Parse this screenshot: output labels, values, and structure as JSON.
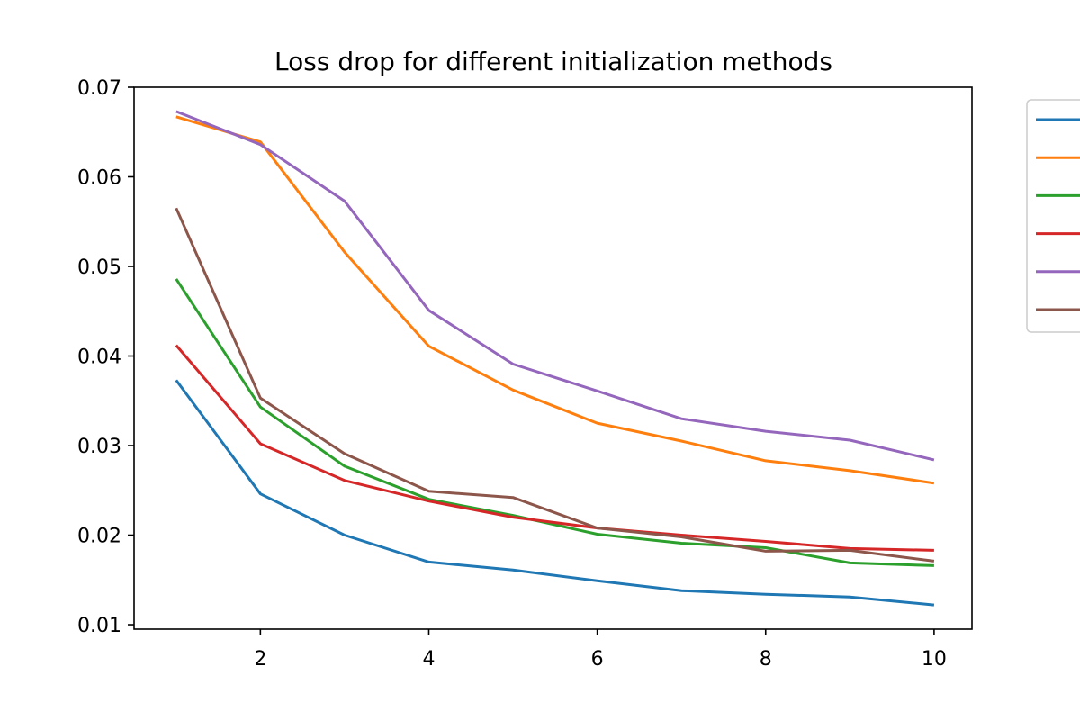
{
  "chart_data": {
    "type": "line",
    "title": "Loss drop for different initialization methods",
    "xlabel": "",
    "ylabel": "",
    "xlim": [
      0.5,
      10.45
    ],
    "ylim": [
      0.0095,
      0.07
    ],
    "xticks": [
      2,
      4,
      6,
      8,
      10
    ],
    "yticks": [
      0.01,
      0.02,
      0.03,
      0.04,
      0.05,
      0.06,
      0.07
    ],
    "ytick_labels": [
      "0.01",
      "0.02",
      "0.03",
      "0.04",
      "0.05",
      "0.06",
      "0.07"
    ],
    "x": [
      1,
      2,
      3,
      4,
      5,
      6,
      7,
      8,
      9,
      10
    ],
    "grid": false,
    "legend": "outside-right, partially cropped",
    "series": [
      {
        "color": "#1f77b4",
        "values": [
          0.0373,
          0.0246,
          0.02,
          0.017,
          0.0161,
          0.0149,
          0.0138,
          0.0134,
          0.0131,
          0.0122
        ]
      },
      {
        "color": "#ff7f0e",
        "values": [
          0.0667,
          0.0639,
          0.0516,
          0.0411,
          0.0362,
          0.0325,
          0.0305,
          0.0283,
          0.0272,
          0.0258
        ]
      },
      {
        "color": "#2ca02c",
        "values": [
          0.0486,
          0.0343,
          0.0277,
          0.024,
          0.0222,
          0.0201,
          0.0191,
          0.0186,
          0.0169,
          0.0166
        ]
      },
      {
        "color": "#d62728",
        "values": [
          0.0412,
          0.0302,
          0.0261,
          0.0238,
          0.022,
          0.0208,
          0.02,
          0.0193,
          0.0185,
          0.0183
        ]
      },
      {
        "color": "#9467bd",
        "values": [
          0.0673,
          0.0636,
          0.0573,
          0.0451,
          0.0391,
          0.0361,
          0.033,
          0.0316,
          0.0306,
          0.0284
        ]
      },
      {
        "color": "#8c564b",
        "values": [
          0.0565,
          0.0353,
          0.0291,
          0.0249,
          0.0242,
          0.0208,
          0.0198,
          0.0182,
          0.0183,
          0.0171
        ]
      }
    ]
  }
}
